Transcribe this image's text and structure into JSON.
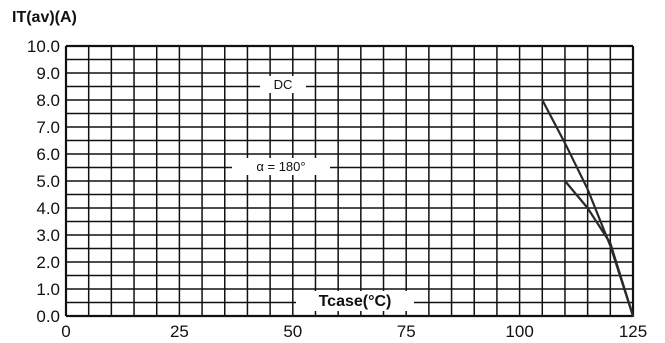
{
  "chart_data": {
    "type": "line",
    "ylabel": "IT(av)(A)",
    "xlabel": "Tcase(°C)",
    "xlim": [
      0,
      125
    ],
    "ylim": [
      0,
      10
    ],
    "x_ticks": [
      0,
      25,
      50,
      75,
      100,
      125
    ],
    "x_tick_labels": [
      "0",
      "25",
      "50",
      "75",
      "100",
      "125"
    ],
    "y_ticks": [
      0,
      1,
      2,
      3,
      4,
      5,
      6,
      7,
      8,
      9,
      10
    ],
    "y_tick_labels": [
      "0.0",
      "1.0",
      "2.0",
      "3.0",
      "4.0",
      "5.0",
      "6.0",
      "7.0",
      "8.0",
      "9.0",
      "10.0"
    ],
    "grid": true,
    "grid_minor_x_step": 5,
    "grid_minor_y_step": 0.5,
    "annotations": [
      "DC",
      "α = 180°"
    ],
    "series": [
      {
        "x": [
          105,
          110,
          115,
          120,
          125
        ],
        "y": [
          8.0,
          6.4,
          4.7,
          2.6,
          0.0
        ]
      },
      {
        "x": [
          110,
          115,
          120,
          125
        ],
        "y": [
          5.0,
          4.0,
          2.7,
          0.0
        ]
      }
    ]
  }
}
